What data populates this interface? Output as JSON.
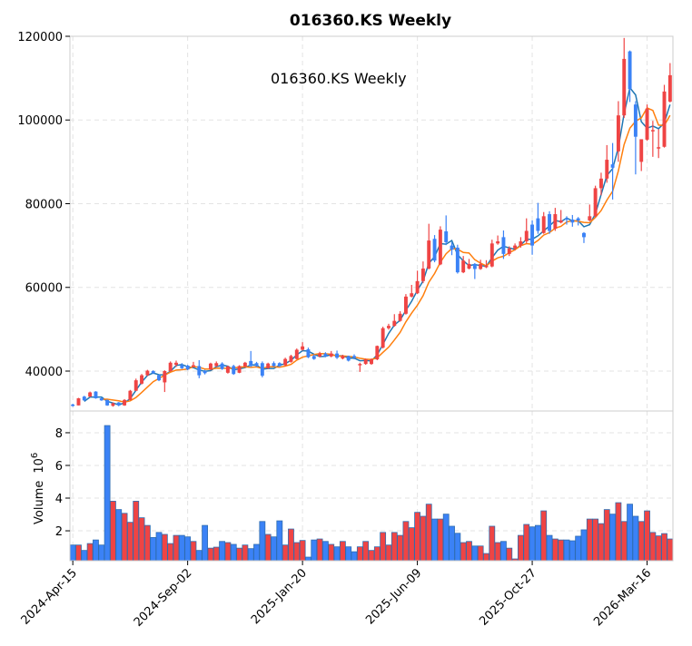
{
  "chart_data": {
    "type": "candlestick",
    "title": "016360.KS  Weekly",
    "annotation": "016360.KS  Weekly",
    "ylabel_volume": "Volume",
    "volume_multiplier": "10",
    "volume_exponent": "6",
    "price_ylim": [
      30460,
      120000
    ],
    "price_yticks": [
      40000,
      60000,
      80000,
      100000,
      120000
    ],
    "price_ytick_labels": [
      "40000",
      "60000",
      "80000",
      "100000",
      "120000"
    ],
    "volume_ylim": [
      0.17,
      9.33
    ],
    "volume_yticks": [
      2,
      4,
      6,
      8
    ],
    "volume_ytick_labels": [
      "2",
      "4",
      "6",
      "8"
    ],
    "xlim": [
      -0.5,
      104.5
    ],
    "xtick_index": [
      0,
      20,
      40,
      60,
      80,
      100
    ],
    "xtick_labels": [
      "2024-Apr-15",
      "2024-Sep-02",
      "2025-Jan-20",
      "2025-Jun-09",
      "2025-Oct-27",
      "2026-Mar-16"
    ],
    "grid": true,
    "colors": {
      "up": "#ef4444",
      "down": "#3b82f6",
      "ma_fast": "#1f77b4",
      "ma_slow": "#ff7f0e",
      "volume_edge": "#2f6db0"
    },
    "moving_averages": [
      {
        "name": "MA fast",
        "window": 3
      },
      {
        "name": "MA slow",
        "window": 6
      }
    ],
    "ohlc": [
      [
        32000,
        32200,
        31500,
        31800
      ],
      [
        31800,
        33600,
        31800,
        33500
      ],
      [
        33900,
        34100,
        32900,
        33000
      ],
      [
        33900,
        35100,
        33800,
        34900
      ],
      [
        35100,
        35200,
        33400,
        33500
      ],
      [
        33500,
        33700,
        32900,
        33000
      ],
      [
        33100,
        33200,
        31700,
        31800
      ],
      [
        31700,
        32500,
        31500,
        32300
      ],
      [
        32500,
        32600,
        31600,
        31800
      ],
      [
        31800,
        33300,
        31700,
        33100
      ],
      [
        33100,
        35500,
        33000,
        35300
      ],
      [
        35300,
        38200,
        35200,
        37800
      ],
      [
        37000,
        39300,
        36800,
        39000
      ],
      [
        39000,
        40300,
        38800,
        40100
      ],
      [
        40000,
        40200,
        39300,
        39500
      ],
      [
        39000,
        39200,
        37600,
        37800
      ],
      [
        37300,
        40200,
        35000,
        40000
      ],
      [
        40000,
        42300,
        39900,
        42000
      ],
      [
        41500,
        42500,
        41000,
        42000
      ],
      [
        41400,
        41900,
        40500,
        40700
      ],
      [
        41300,
        41500,
        40200,
        40400
      ],
      [
        41000,
        42200,
        40900,
        41400
      ],
      [
        41200,
        42600,
        38300,
        39000
      ],
      [
        40000,
        40300,
        39200,
        39500
      ],
      [
        40400,
        42000,
        40200,
        41800
      ],
      [
        41200,
        42300,
        41000,
        41900
      ],
      [
        41800,
        42100,
        40300,
        40500
      ],
      [
        39600,
        41300,
        39400,
        41100
      ],
      [
        41200,
        41500,
        39100,
        39300
      ],
      [
        39600,
        41400,
        39500,
        41200
      ],
      [
        41100,
        42200,
        40900,
        42000
      ],
      [
        42400,
        44800,
        41000,
        41200
      ],
      [
        41900,
        42200,
        41000,
        41200
      ],
      [
        41900,
        42300,
        38500,
        38900
      ],
      [
        40700,
        42000,
        40500,
        41800
      ],
      [
        41900,
        42300,
        41000,
        41200
      ],
      [
        41900,
        42100,
        41000,
        41200
      ],
      [
        41400,
        43200,
        41200,
        42900
      ],
      [
        42200,
        43900,
        42000,
        43600
      ],
      [
        42900,
        45400,
        42800,
        45100
      ],
      [
        45100,
        46900,
        44900,
        45900
      ],
      [
        45200,
        45600,
        43100,
        43300
      ],
      [
        43600,
        44000,
        42700,
        42900
      ],
      [
        43500,
        44600,
        43300,
        44200
      ],
      [
        44200,
        44500,
        43300,
        43500
      ],
      [
        43500,
        44800,
        43300,
        44200
      ],
      [
        44200,
        44900,
        42900,
        43200
      ],
      [
        43000,
        43900,
        42800,
        43600
      ],
      [
        43600,
        43700,
        42300,
        42500
      ],
      [
        43600,
        44000,
        42800,
        43200
      ],
      [
        41600,
        42000,
        39800,
        41700
      ],
      [
        41700,
        43000,
        41500,
        42800
      ],
      [
        41700,
        43000,
        41500,
        42800
      ],
      [
        42800,
        46100,
        42600,
        46000
      ],
      [
        45600,
        50600,
        45400,
        50250
      ],
      [
        50250,
        51300,
        49900,
        50800
      ],
      [
        50800,
        53600,
        50600,
        52000
      ],
      [
        52000,
        54300,
        51800,
        53700
      ],
      [
        53700,
        58400,
        53500,
        57800
      ],
      [
        57800,
        60600,
        57600,
        58600
      ],
      [
        58600,
        64000,
        58400,
        61500
      ],
      [
        61500,
        66200,
        61000,
        64500
      ],
      [
        64500,
        75200,
        64300,
        71200
      ],
      [
        71600,
        72500,
        66000,
        66400
      ],
      [
        65500,
        74600,
        65300,
        73800
      ],
      [
        73400,
        77200,
        70100,
        70800
      ],
      [
        70000,
        70800,
        67700,
        69000
      ],
      [
        69500,
        70200,
        63300,
        63600
      ],
      [
        63600,
        67500,
        63400,
        66400
      ],
      [
        64500,
        66800,
        64300,
        65600
      ],
      [
        65600,
        65800,
        62000,
        64400
      ],
      [
        64400,
        66600,
        64200,
        65600
      ],
      [
        64800,
        66500,
        64600,
        65200
      ],
      [
        65000,
        71400,
        64800,
        70500
      ],
      [
        70500,
        72400,
        70200,
        71000
      ],
      [
        72000,
        73600,
        66800,
        68000
      ],
      [
        68000,
        69800,
        67500,
        69300
      ],
      [
        69300,
        70500,
        68800,
        70000
      ],
      [
        70000,
        72000,
        69500,
        71000
      ],
      [
        71000,
        76500,
        70500,
        73500
      ],
      [
        75000,
        76000,
        67800,
        70000
      ],
      [
        76500,
        80200,
        72800,
        73500
      ],
      [
        73000,
        78000,
        72800,
        77000
      ],
      [
        77500,
        78200,
        72800,
        73500
      ],
      [
        74000,
        79000,
        73500,
        77500
      ],
      [
        75500,
        78500,
        75300,
        76000
      ],
      [
        76500,
        77000,
        75000,
        76200
      ],
      [
        76200,
        77300,
        74500,
        75500
      ],
      [
        76500,
        76800,
        74800,
        76000
      ],
      [
        73000,
        73200,
        70600,
        72000
      ],
      [
        76000,
        79800,
        75800,
        77000
      ],
      [
        77000,
        84300,
        76800,
        83700
      ],
      [
        83700,
        87400,
        82000,
        86000
      ],
      [
        86000,
        94000,
        85000,
        90500
      ],
      [
        89400,
        94500,
        81000,
        88600
      ],
      [
        92500,
        104500,
        90000,
        101100
      ],
      [
        101100,
        119600,
        100500,
        114600
      ],
      [
        116400,
        116600,
        104300,
        107400
      ],
      [
        103700,
        104500,
        87000,
        96000
      ],
      [
        90000,
        95400,
        87800,
        95400
      ],
      [
        95300,
        103700,
        95000,
        102700
      ],
      [
        97300,
        99800,
        91200,
        97600
      ],
      [
        93300,
        97800,
        90900,
        93500
      ],
      [
        93600,
        108400,
        93400,
        106800
      ],
      [
        104400,
        113600,
        104200,
        110700
      ]
    ],
    "volume": [
      1.13,
      1.13,
      0.8,
      1.22,
      1.44,
      1.13,
      8.44,
      3.81,
      3.3,
      3.07,
      2.52,
      3.81,
      2.8,
      2.33,
      1.59,
      1.9,
      1.78,
      1.22,
      1.72,
      1.72,
      1.63,
      1.35,
      0.8,
      2.33,
      0.94,
      1.0,
      1.35,
      1.28,
      1.17,
      0.94,
      1.13,
      0.91,
      1.17,
      2.57,
      1.78,
      1.63,
      2.61,
      1.13,
      2.11,
      1.28,
      1.41,
      0.39,
      1.44,
      1.5,
      1.35,
      1.17,
      1.02,
      1.35,
      1.02,
      0.72,
      1.02,
      1.35,
      0.8,
      1.02,
      1.9,
      1.13,
      1.9,
      1.72,
      2.57,
      2.19,
      3.13,
      2.89,
      3.63,
      2.72,
      2.72,
      3.02,
      2.28,
      1.85,
      1.28,
      1.35,
      1.07,
      1.07,
      0.61,
      2.28,
      1.28,
      1.35,
      0.94,
      0.28,
      1.72,
      2.39,
      2.24,
      2.33,
      3.22,
      1.72,
      1.5,
      1.44,
      1.44,
      1.39,
      1.67,
      2.06,
      2.72,
      2.72,
      2.44,
      3.3,
      3.02,
      3.72,
      2.57,
      3.63,
      2.89,
      2.57,
      3.22,
      1.9,
      1.69,
      1.83,
      1.5
    ]
  }
}
